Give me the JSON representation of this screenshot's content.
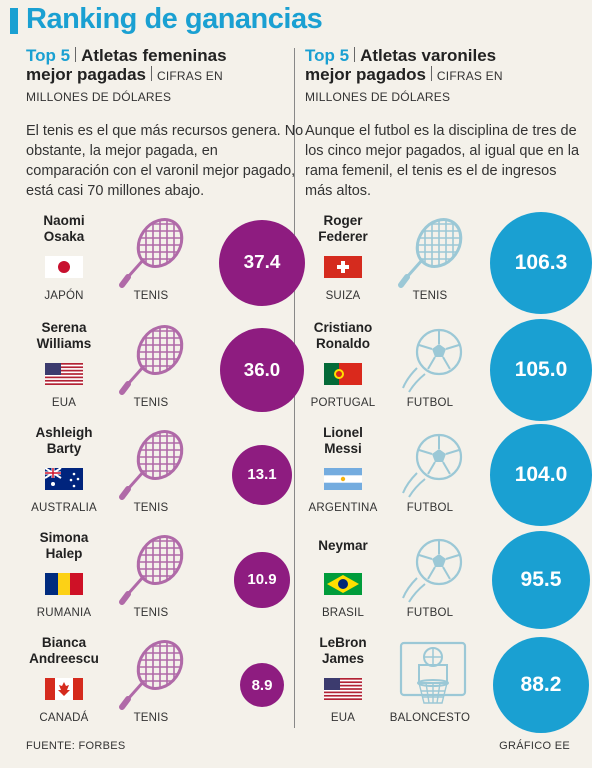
{
  "title": "Ranking de ganancias",
  "colors": {
    "accent": "#1aa0d2",
    "female": "#8e1c80",
    "male": "#1aa0d2"
  },
  "left": {
    "top5": "Top 5",
    "heading_a": "Atletas femeninas",
    "heading_b": "mejor pagadas",
    "units_a": "CIFRAS EN",
    "units_b": "MILLONES DE DÓLARES",
    "description": "El tenis es el que más recursos genera. No obstante, la mejor pagada, en comparación con el varonil mejor pagado, está casi 70 millones abajo."
  },
  "right": {
    "top5": "Top 5",
    "heading_a": "Atletas varoniles",
    "heading_b": "mejor pagados",
    "units_a": "CIFRAS EN",
    "units_b": "MILLONES DE DÓLARES",
    "description": "Aunque el futbol es la disciplina de tres de los cinco mejor pagados, al igual que en la rama femenil, el tenis es el de ingresos más altos."
  },
  "chart_data": [
    {
      "type": "bubble",
      "series": [
        {
          "name": "Atletas femeninas mejor pagadas",
          "values": [
            37.4,
            36.0,
            13.1,
            10.9,
            8.9
          ]
        }
      ],
      "value_labels": [
        "37.4",
        "36.0",
        "13.1",
        "10.9",
        "8.9"
      ],
      "unit": "CIFRAS EN MILLONES DE DÓLARES",
      "athletes": [
        {
          "name_a": "Naomi",
          "name_b": "Osaka",
          "country": "JAPÓN",
          "flag": "japan",
          "sport": "TENIS",
          "icon": "tennis-racket-icon"
        },
        {
          "name_a": "Serena",
          "name_b": "Williams",
          "country": "EUA",
          "flag": "usa",
          "sport": "TENIS",
          "icon": "tennis-racket-icon"
        },
        {
          "name_a": "Ashleigh",
          "name_b": "Barty",
          "country": "AUSTRALIA",
          "flag": "australia",
          "sport": "TENIS",
          "icon": "tennis-racket-icon"
        },
        {
          "name_a": "Simona",
          "name_b": "Halep",
          "country": "RUMANIA",
          "flag": "romania",
          "sport": "TENIS",
          "icon": "tennis-racket-icon"
        },
        {
          "name_a": "Bianca",
          "name_b": "Andreescu",
          "country": "CANADÁ",
          "flag": "canada",
          "sport": "TENIS",
          "icon": "tennis-racket-icon"
        }
      ]
    },
    {
      "type": "bubble",
      "series": [
        {
          "name": "Atletas varoniles mejor pagados",
          "values": [
            106.3,
            105.0,
            104.0,
            95.5,
            88.2
          ]
        }
      ],
      "value_labels": [
        "106.3",
        "105.0",
        "104.0",
        "95.5",
        "88.2"
      ],
      "unit": "CIFRAS EN MILLONES DE DÓLARES",
      "athletes": [
        {
          "name_a": "Roger",
          "name_b": "Federer",
          "country": "SUIZA",
          "flag": "switzerland",
          "sport": "TENIS",
          "icon": "tennis-racket-icon"
        },
        {
          "name_a": "Cristiano",
          "name_b": "Ronaldo",
          "country": "PORTUGAL",
          "flag": "portugal",
          "sport": "FUTBOL",
          "icon": "soccer-ball-icon"
        },
        {
          "name_a": "Lionel",
          "name_b": "Messi",
          "country": "ARGENTINA",
          "flag": "argentina",
          "sport": "FUTBOL",
          "icon": "soccer-ball-icon"
        },
        {
          "name_a": "Neymar",
          "name_b": "",
          "country": "BRASIL",
          "flag": "brazil",
          "sport": "FUTBOL",
          "icon": "soccer-ball-icon"
        },
        {
          "name_a": "LeBron",
          "name_b": "James",
          "country": "EUA",
          "flag": "usa",
          "sport": "BALONCESTO",
          "icon": "basketball-hoop-icon"
        }
      ]
    }
  ],
  "footer": {
    "source": "FUENTE: FORBES",
    "credit": "GRÁFICO EE"
  }
}
